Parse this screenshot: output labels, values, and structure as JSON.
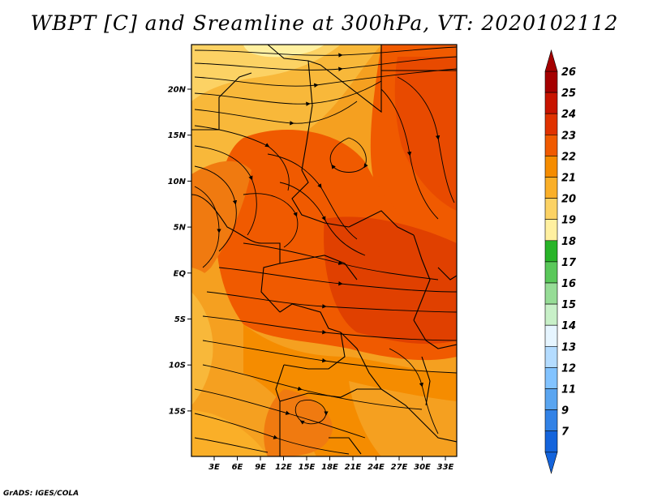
{
  "title": "WBPT [C] and Sreamline at 300hPa, VT: 2020102112",
  "credit": "GrADS: IGES/COLA",
  "map": {
    "lat_labels": [
      "20N",
      "15N",
      "10N",
      "5N",
      "EQ",
      "5S",
      "10S",
      "15S"
    ],
    "lon_labels": [
      "3E",
      "6E",
      "9E",
      "12E",
      "15E",
      "18E",
      "21E",
      "24E",
      "27E",
      "30E",
      "33E"
    ]
  },
  "colorbar": {
    "labels": [
      "26",
      "25",
      "24",
      "23",
      "22",
      "21",
      "20",
      "19",
      "18",
      "17",
      "16",
      "15",
      "14",
      "13",
      "12",
      "11",
      "9",
      "7"
    ],
    "colors": [
      "#a50000",
      "#c81400",
      "#e03200",
      "#f05a00",
      "#f58c00",
      "#faaf28",
      "#fcd264",
      "#fff0a0",
      "#28b428",
      "#5ac85a",
      "#96dc96",
      "#c8f0c8",
      "#e6f5ff",
      "#b4dcff",
      "#82c3ff",
      "#5aa5f0",
      "#3282e6",
      "#1464dc"
    ],
    "end_top_color": "#a50000",
    "end_bottom_color": "#1464dc"
  }
}
